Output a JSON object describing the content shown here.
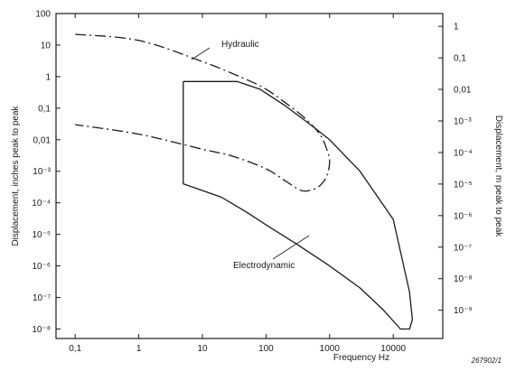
{
  "chart_data": {
    "type": "line",
    "title": "",
    "xlabel": "Frequency Hz",
    "ylabel_left": "Displacement, inches peak to peak",
    "ylabel_right": "Displacement, m peak to peak",
    "x_scale": "log",
    "y_scale": "log",
    "xlim": [
      0.05,
      60000
    ],
    "ylim_left_inches": [
      5e-09,
      100
    ],
    "x_ticks": [
      {
        "value": 0.1,
        "label": "0,1"
      },
      {
        "value": 1,
        "label": "1"
      },
      {
        "value": 10,
        "label": "10"
      },
      {
        "value": 100,
        "label": "100"
      },
      {
        "value": 1000,
        "label": "1000"
      },
      {
        "value": 10000,
        "label": "10000"
      }
    ],
    "y_left_ticks": [
      {
        "value": 100,
        "label": "100"
      },
      {
        "value": 10,
        "label": "10"
      },
      {
        "value": 1,
        "label": "1"
      },
      {
        "value": 0.1,
        "label": "0,1"
      },
      {
        "value": 0.01,
        "label": "0,01"
      },
      {
        "value": 0.001,
        "label": "10⁻³"
      },
      {
        "value": 0.0001,
        "label": "10⁻⁴"
      },
      {
        "value": 1e-05,
        "label": "10⁻⁵"
      },
      {
        "value": 1e-06,
        "label": "10⁻⁶"
      },
      {
        "value": 1e-07,
        "label": "10⁻⁷"
      },
      {
        "value": 1e-08,
        "label": "10⁻⁸"
      }
    ],
    "y_right_ticks": [
      {
        "value_inches": 39.37,
        "label": "1"
      },
      {
        "value_inches": 3.937,
        "label": "0,1"
      },
      {
        "value_inches": 0.3937,
        "label": "0,01"
      },
      {
        "value_inches": 0.03937,
        "label": "10⁻³"
      },
      {
        "value_inches": 0.003937,
        "label": "10⁻⁴"
      },
      {
        "value_inches": 0.0003937,
        "label": "10⁻⁵"
      },
      {
        "value_inches": 3.937e-05,
        "label": "10⁻⁶"
      },
      {
        "value_inches": 3.937e-06,
        "label": "10⁻⁷"
      },
      {
        "value_inches": 3.937e-07,
        "label": "10⁻⁸"
      },
      {
        "value_inches": 3.937e-08,
        "label": "10⁻⁹"
      }
    ],
    "series": [
      {
        "name": "Hydraulic",
        "style": "dash-dot",
        "segments": [
          [
            [
              0.1,
              22
            ],
            [
              1,
              14
            ],
            [
              10,
              3
            ],
            [
              50,
              0.8
            ],
            [
              100,
              0.4
            ],
            [
              200,
              0.15
            ],
            [
              400,
              0.05
            ],
            [
              700,
              0.015
            ],
            [
              900,
              0.005
            ],
            [
              1000,
              0.002
            ],
            [
              900,
              0.0007
            ],
            [
              700,
              0.00035
            ],
            [
              500,
              0.00025
            ],
            [
              350,
              0.00025
            ],
            [
              200,
              0.0005
            ],
            [
              100,
              0.0012
            ],
            [
              30,
              0.003
            ],
            [
              10,
              0.005
            ],
            [
              1,
              0.015
            ],
            [
              0.1,
              0.03
            ]
          ]
        ]
      },
      {
        "name": "Electrodynamic",
        "style": "solid",
        "segments": [
          [
            [
              5,
              0.7
            ],
            [
              35,
              0.7
            ],
            [
              80,
              0.4
            ],
            [
              200,
              0.12
            ],
            [
              500,
              0.03
            ],
            [
              1000,
              0.01
            ],
            [
              3000,
              0.001
            ],
            [
              10000,
              3e-05
            ],
            [
              18000,
              1.5e-07
            ],
            [
              20000,
              2e-08
            ],
            [
              18000,
              1e-08
            ],
            [
              13000,
              1e-08
            ],
            [
              7000,
              4e-08
            ],
            [
              3000,
              2e-07
            ],
            [
              1000,
              1e-06
            ],
            [
              300,
              5e-06
            ],
            [
              100,
              2e-05
            ],
            [
              50,
              5e-05
            ],
            [
              20,
              0.00015
            ],
            [
              5,
              0.0004
            ],
            [
              5,
              0.7
            ]
          ]
        ]
      }
    ],
    "annotations": [
      {
        "text": "Hydraulic",
        "at_x": 60,
        "at_y": 6
      },
      {
        "text": "Electrodynamic",
        "at_x": 100,
        "at_y": 4e-06
      }
    ],
    "figure_id": "267902/1",
    "grid": false
  }
}
